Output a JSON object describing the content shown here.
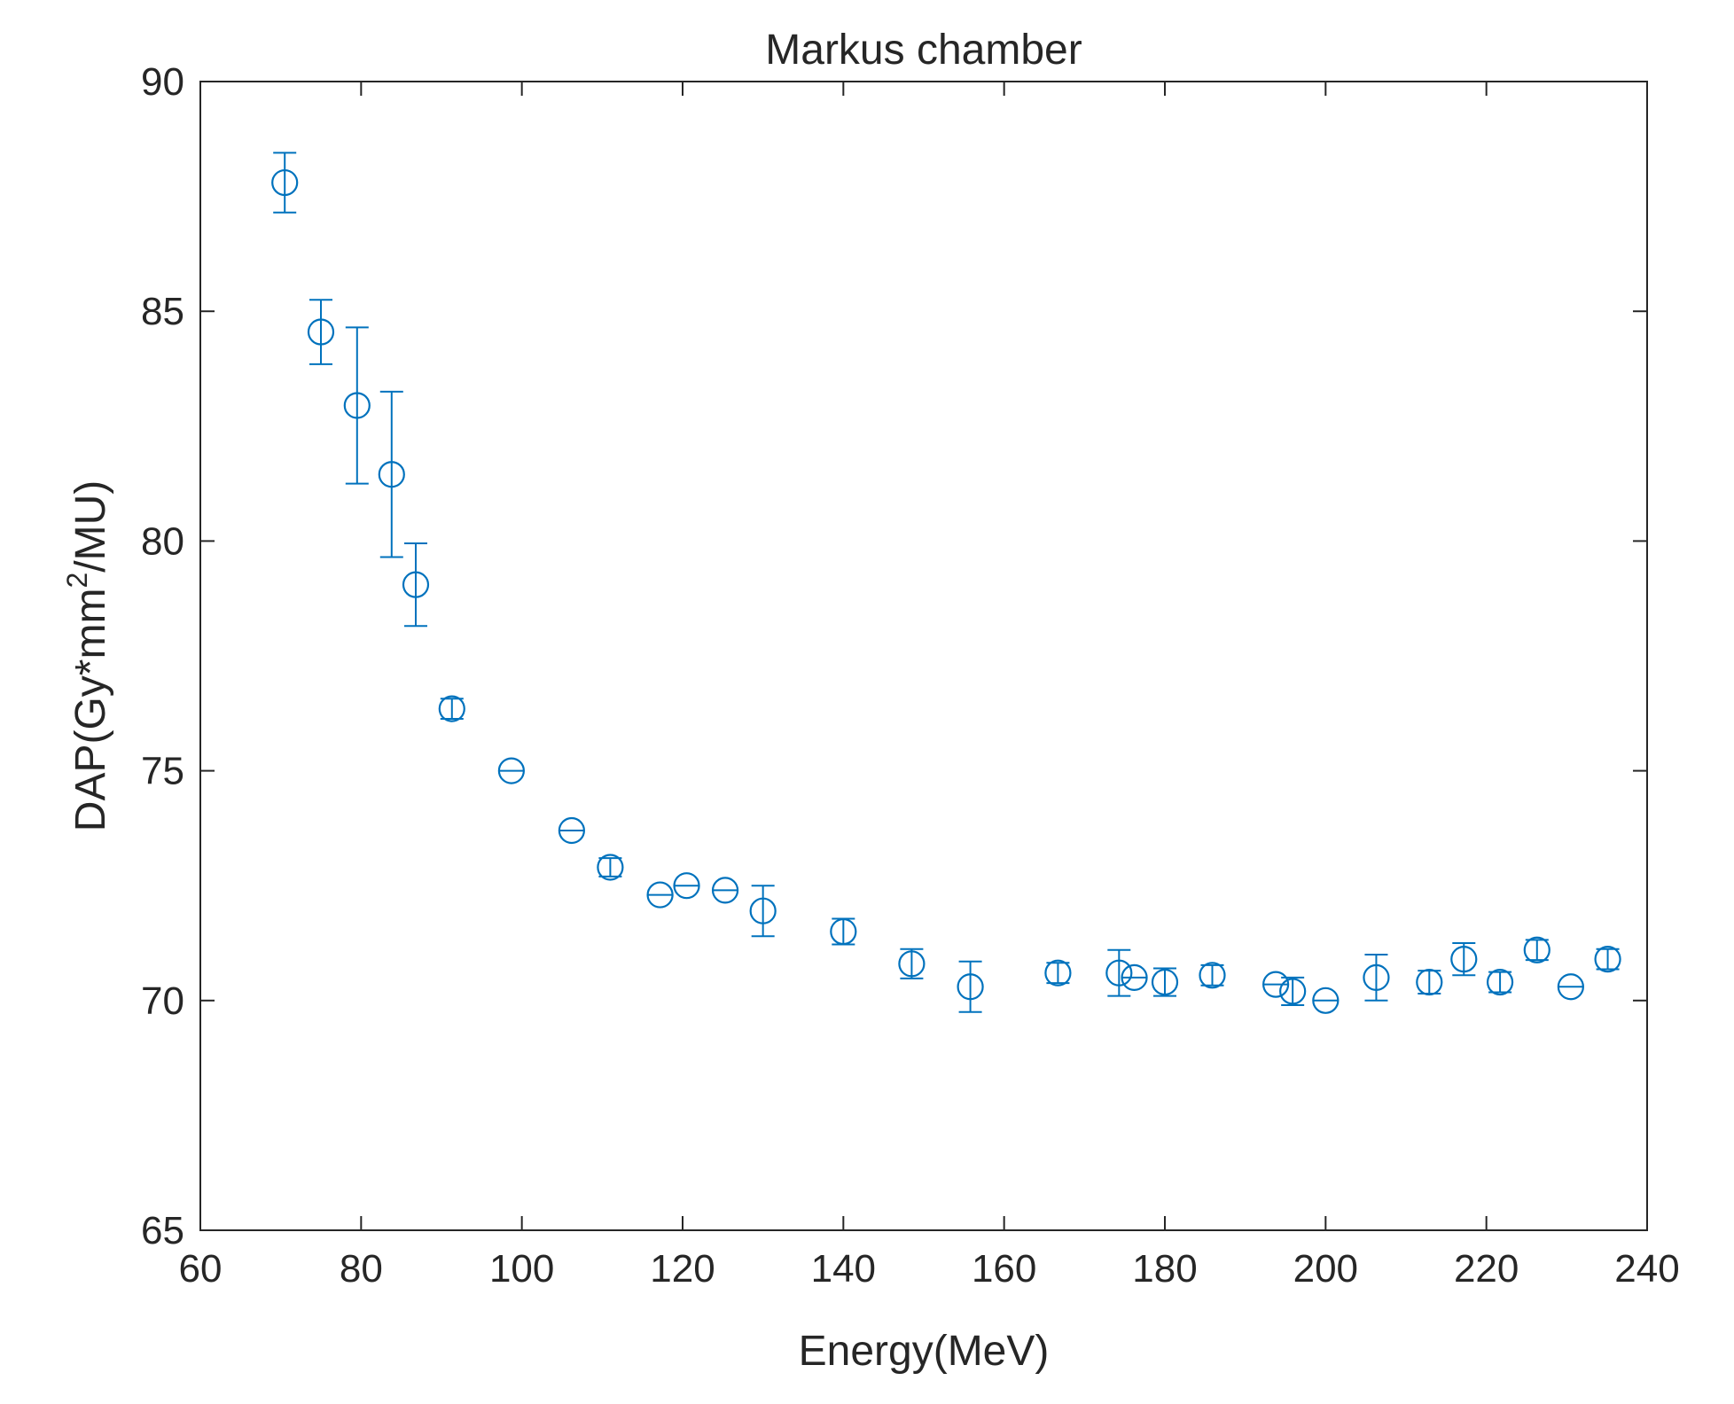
{
  "chart_data": {
    "type": "scatter",
    "title": "Markus chamber",
    "xlabel": "Energy(MeV)",
    "ylabel": {
      "prefix": "DAP(Gy*mm",
      "superscript": "2",
      "suffix": "/MU)"
    },
    "xlim": [
      60,
      240
    ],
    "ylim": [
      65,
      90
    ],
    "xticks": [
      60,
      80,
      100,
      120,
      140,
      160,
      180,
      200,
      220,
      240
    ],
    "yticks": [
      65,
      70,
      75,
      80,
      85,
      90
    ],
    "grid": false,
    "marker": "circle",
    "color": "#0072BD",
    "series": [
      {
        "name": "Markus chamber",
        "points": [
          {
            "x": 70.5,
            "y": 87.8,
            "err": 0.65
          },
          {
            "x": 75.0,
            "y": 84.55,
            "err": 0.7
          },
          {
            "x": 79.5,
            "y": 82.95,
            "err": 1.7
          },
          {
            "x": 83.8,
            "y": 81.45,
            "err": 1.8
          },
          {
            "x": 86.8,
            "y": 79.05,
            "err": 0.9
          },
          {
            "x": 91.3,
            "y": 76.35,
            "err": 0.22
          },
          {
            "x": 98.7,
            "y": 75.0,
            "err": 0.0
          },
          {
            "x": 106.2,
            "y": 73.7,
            "err": 0.0
          },
          {
            "x": 111.0,
            "y": 72.9,
            "err": 0.2
          },
          {
            "x": 117.2,
            "y": 72.3,
            "err": 0.0
          },
          {
            "x": 120.5,
            "y": 72.5,
            "err": 0.0
          },
          {
            "x": 125.3,
            "y": 72.4,
            "err": 0.0
          },
          {
            "x": 130.0,
            "y": 71.95,
            "err": 0.55
          },
          {
            "x": 140.0,
            "y": 71.5,
            "err": 0.28
          },
          {
            "x": 148.5,
            "y": 70.8,
            "err": 0.32
          },
          {
            "x": 155.8,
            "y": 70.3,
            "err": 0.55
          },
          {
            "x": 166.7,
            "y": 70.6,
            "err": 0.22
          },
          {
            "x": 174.3,
            "y": 70.6,
            "err": 0.5
          },
          {
            "x": 176.2,
            "y": 70.5,
            "err": 0.0
          },
          {
            "x": 180.0,
            "y": 70.4,
            "err": 0.3
          },
          {
            "x": 185.9,
            "y": 70.55,
            "err": 0.22
          },
          {
            "x": 193.8,
            "y": 70.35,
            "err": 0.0
          },
          {
            "x": 195.9,
            "y": 70.2,
            "err": 0.3
          },
          {
            "x": 200.0,
            "y": 70.0,
            "err": 0.0
          },
          {
            "x": 206.3,
            "y": 70.5,
            "err": 0.5
          },
          {
            "x": 212.9,
            "y": 70.4,
            "err": 0.25
          },
          {
            "x": 217.2,
            "y": 70.9,
            "err": 0.35
          },
          {
            "x": 221.7,
            "y": 70.4,
            "err": 0.22
          },
          {
            "x": 226.3,
            "y": 71.1,
            "err": 0.22
          },
          {
            "x": 230.5,
            "y": 70.3,
            "err": 0.0
          },
          {
            "x": 235.1,
            "y": 70.9,
            "err": 0.22
          }
        ]
      }
    ]
  }
}
